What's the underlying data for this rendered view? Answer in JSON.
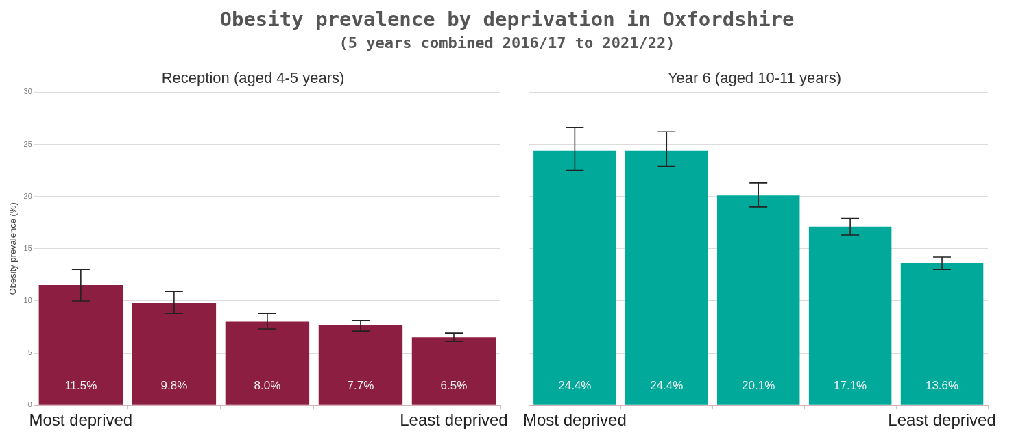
{
  "chart_data": [
    {
      "type": "bar",
      "title": "Reception (aged 4-5 years)",
      "annotations": [
        "Obesity prevalence by deprivation in Oxfordshire",
        "(5 years combined 2016/17 to 2021/22)"
      ],
      "ylabel": "Obesity prevalence (%)",
      "categories": [
        "Most deprived",
        null,
        null,
        null,
        "Least deprived"
      ],
      "values": [
        11.5,
        9.8,
        8.0,
        7.7,
        6.5
      ],
      "value_labels": [
        "11.5%",
        "9.8%",
        "8.0%",
        "7.7%",
        "6.5%"
      ],
      "errors": [
        [
          10.0,
          13.0
        ],
        [
          8.8,
          10.9
        ],
        [
          7.3,
          8.8
        ],
        [
          7.1,
          8.1
        ],
        [
          6.1,
          6.9
        ]
      ],
      "color": "#8b1e41",
      "ylim": [
        0,
        30
      ],
      "yticks": [
        0,
        5,
        10,
        15,
        20,
        25,
        30
      ],
      "grid": "y",
      "legend": false
    },
    {
      "type": "bar",
      "title": "Year 6 (aged 10-11 years)",
      "categories": [
        "Most deprived",
        null,
        null,
        null,
        "Least deprived"
      ],
      "values": [
        24.4,
        24.4,
        20.1,
        17.1,
        13.6
      ],
      "value_labels": [
        "24.4%",
        "24.4%",
        "20.1%",
        "17.1%",
        "13.6%"
      ],
      "errors": [
        [
          22.5,
          26.6
        ],
        [
          22.9,
          26.2
        ],
        [
          19.0,
          21.3
        ],
        [
          16.3,
          17.9
        ],
        [
          13.0,
          14.2
        ]
      ],
      "color": "#00a99a",
      "ylim": [
        0,
        30
      ],
      "yticks": [
        0,
        5,
        10,
        15,
        20,
        25,
        30
      ],
      "grid": "y",
      "legend": false,
      "tick_labels": "x"
    }
  ]
}
